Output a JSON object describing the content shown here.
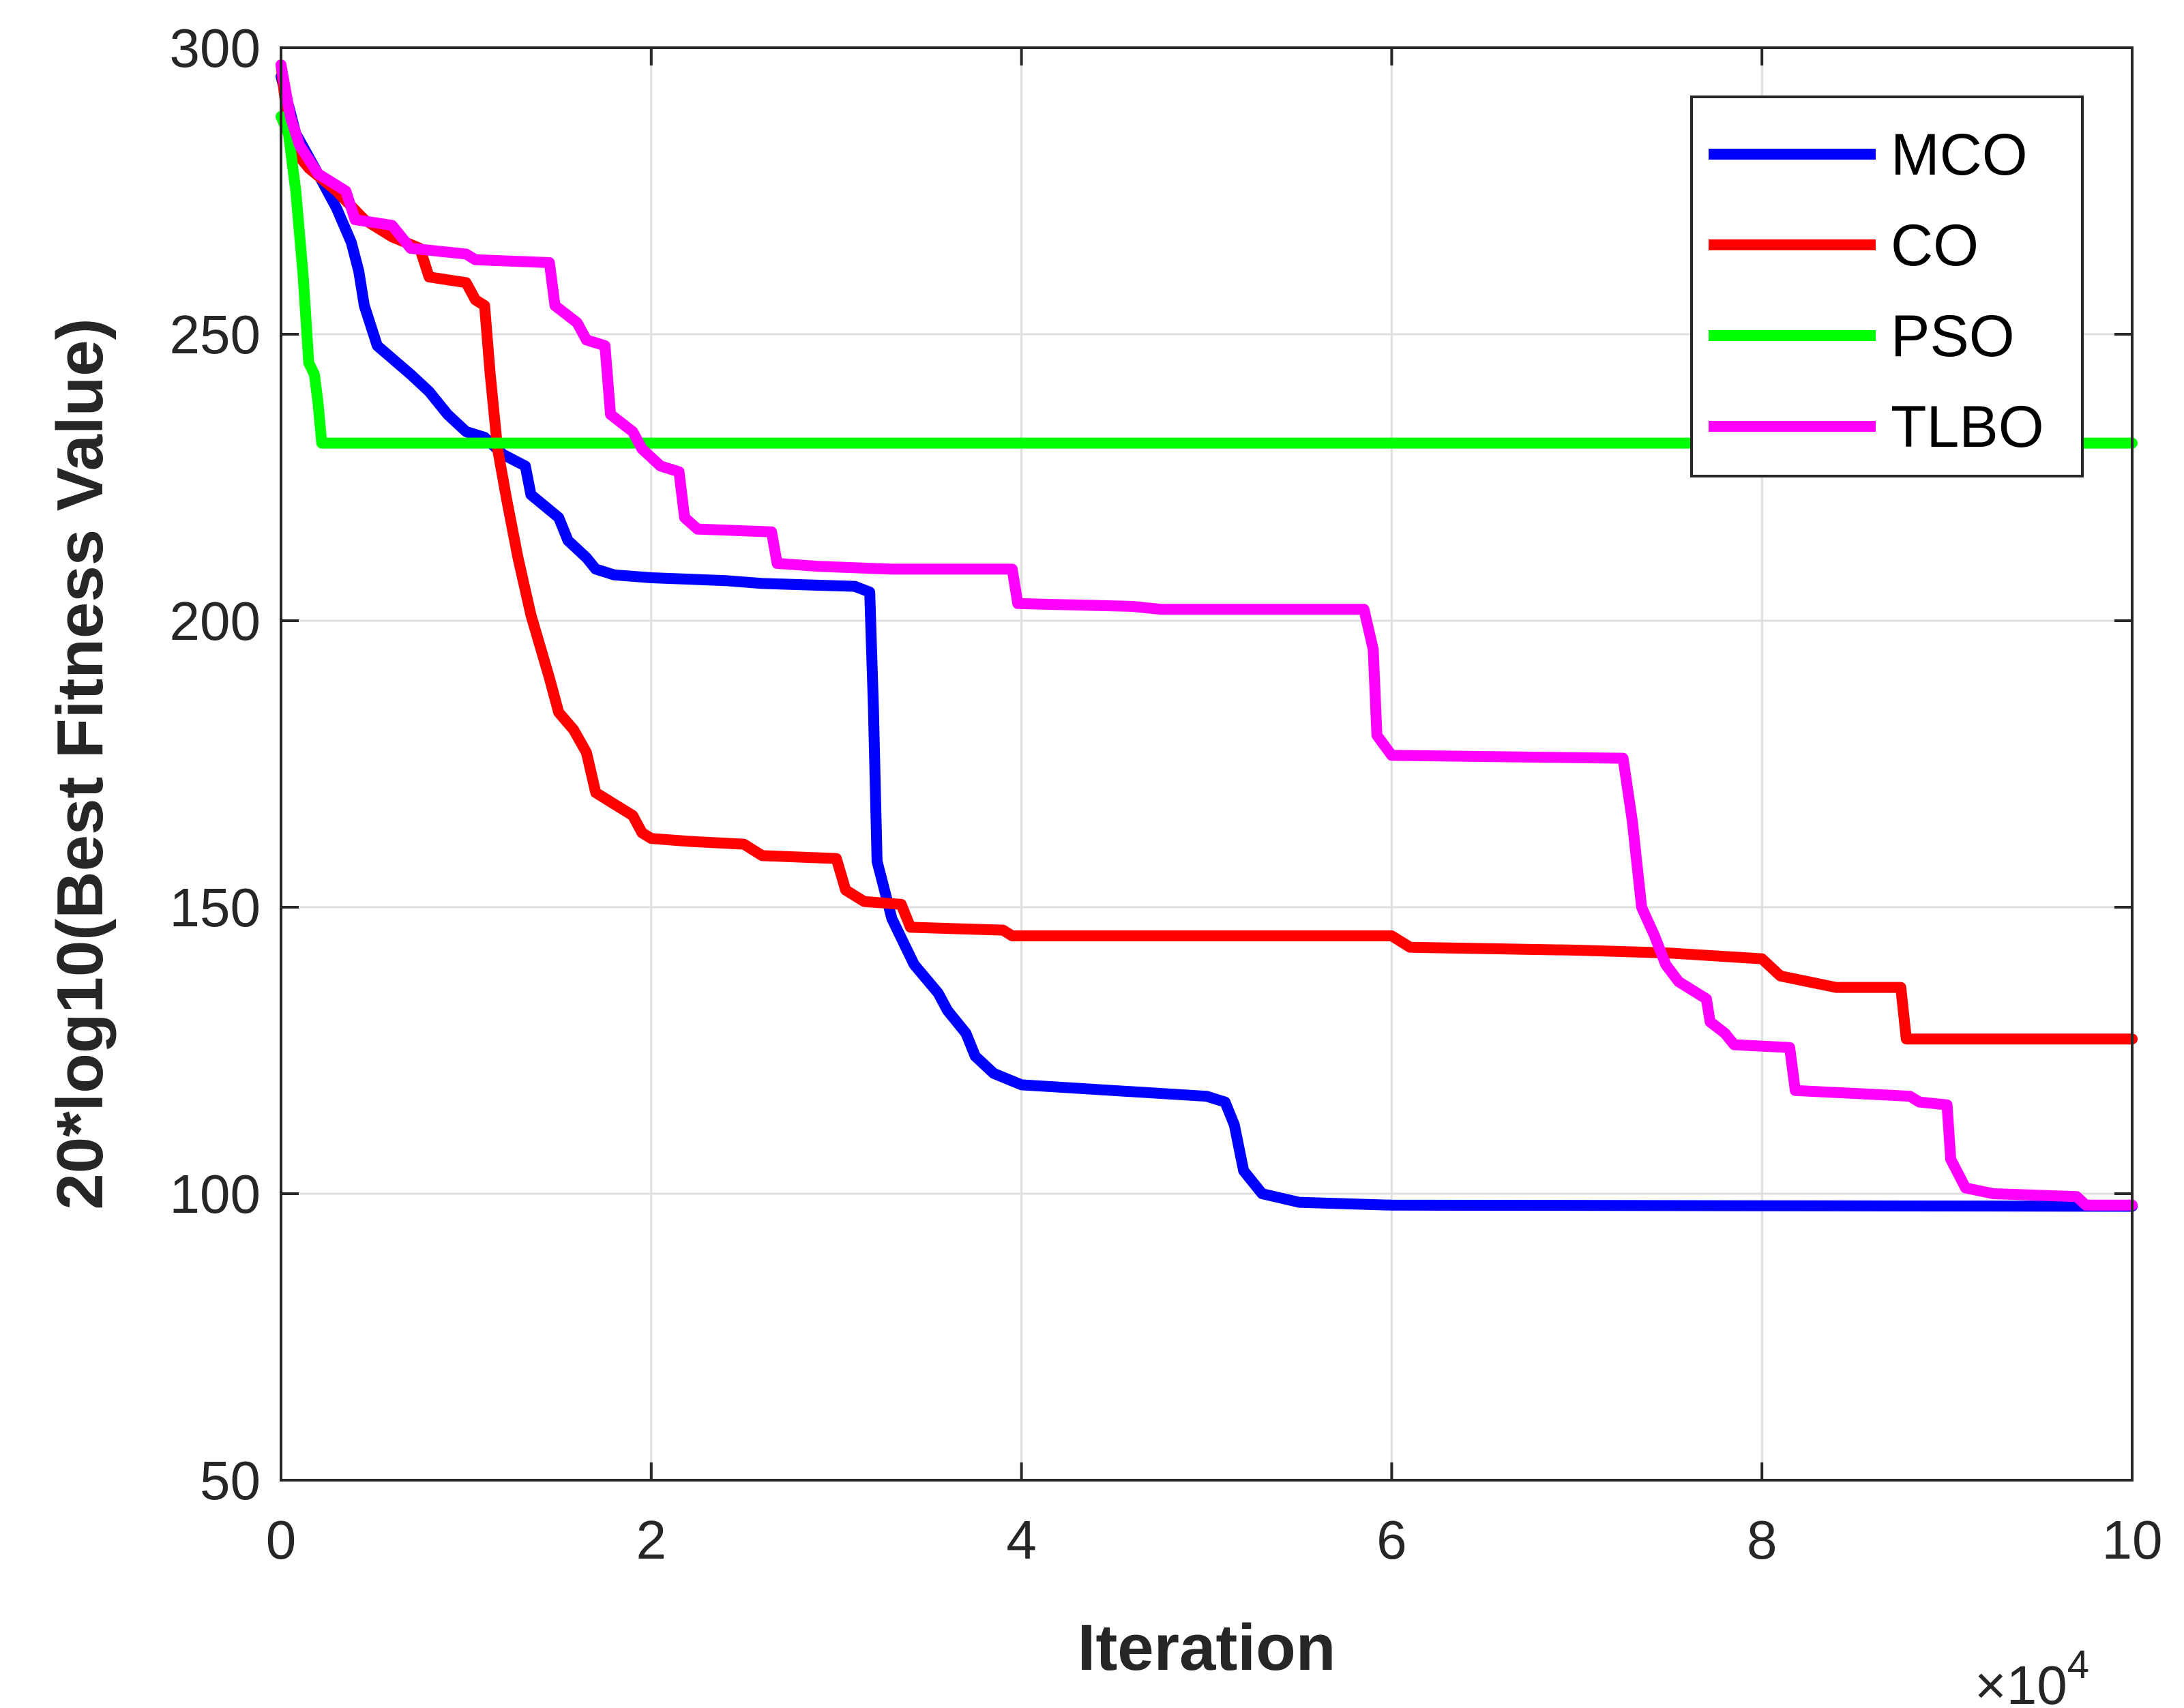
{
  "chart_data": {
    "type": "line",
    "xlabel": "Iteration",
    "ylabel": "20*log10(Best Fitness Value)",
    "x_multiplier_label": "×10",
    "x_multiplier_exponent": "4",
    "xlim": [
      0,
      10
    ],
    "ylim": [
      50,
      300
    ],
    "x_ticks": [
      0,
      2,
      4,
      6,
      8,
      10
    ],
    "y_ticks": [
      50,
      100,
      150,
      200,
      250,
      300
    ],
    "grid": true,
    "legend_position": "top-right",
    "series": [
      {
        "name": "MCO",
        "color": "#0000ff",
        "points": [
          [
            0,
            295
          ],
          [
            0.08,
            285
          ],
          [
            0.2,
            278
          ],
          [
            0.3,
            272
          ],
          [
            0.38,
            266
          ],
          [
            0.42,
            261
          ],
          [
            0.45,
            255
          ],
          [
            0.52,
            248
          ],
          [
            0.7,
            243
          ],
          [
            0.8,
            240
          ],
          [
            0.9,
            236
          ],
          [
            1.0,
            233
          ],
          [
            1.1,
            232
          ],
          [
            1.2,
            229
          ],
          [
            1.32,
            227
          ],
          [
            1.35,
            222
          ],
          [
            1.5,
            218
          ],
          [
            1.55,
            214
          ],
          [
            1.65,
            211
          ],
          [
            1.7,
            209
          ],
          [
            1.8,
            208
          ],
          [
            2.0,
            207.5
          ],
          [
            2.4,
            207
          ],
          [
            2.6,
            206.5
          ],
          [
            3.1,
            206
          ],
          [
            3.18,
            205
          ],
          [
            3.2,
            185
          ],
          [
            3.22,
            158
          ],
          [
            3.3,
            148
          ],
          [
            3.42,
            140
          ],
          [
            3.55,
            135
          ],
          [
            3.6,
            132
          ],
          [
            3.7,
            128
          ],
          [
            3.75,
            124
          ],
          [
            3.85,
            121
          ],
          [
            4.0,
            119
          ],
          [
            4.5,
            118
          ],
          [
            5.0,
            117
          ],
          [
            5.1,
            116
          ],
          [
            5.15,
            112
          ],
          [
            5.2,
            104
          ],
          [
            5.3,
            100
          ],
          [
            5.5,
            98.5
          ],
          [
            6.0,
            98
          ],
          [
            10,
            97.8
          ]
        ]
      },
      {
        "name": "CO",
        "color": "#ff0000",
        "points": [
          [
            0,
            297
          ],
          [
            0.05,
            283
          ],
          [
            0.15,
            279
          ],
          [
            0.3,
            275
          ],
          [
            0.45,
            270
          ],
          [
            0.6,
            267
          ],
          [
            0.75,
            265
          ],
          [
            0.8,
            260
          ],
          [
            1.0,
            259
          ],
          [
            1.05,
            256
          ],
          [
            1.1,
            255
          ],
          [
            1.13,
            243
          ],
          [
            1.17,
            230
          ],
          [
            1.22,
            221
          ],
          [
            1.28,
            211
          ],
          [
            1.35,
            201
          ],
          [
            1.45,
            190
          ],
          [
            1.5,
            184
          ],
          [
            1.58,
            181
          ],
          [
            1.65,
            177
          ],
          [
            1.7,
            170
          ],
          [
            1.8,
            168
          ],
          [
            1.9,
            166
          ],
          [
            1.95,
            163
          ],
          [
            2.0,
            162
          ],
          [
            2.2,
            161.5
          ],
          [
            2.5,
            161
          ],
          [
            2.6,
            159
          ],
          [
            3.0,
            158.5
          ],
          [
            3.05,
            153
          ],
          [
            3.15,
            151
          ],
          [
            3.35,
            150.5
          ],
          [
            3.4,
            146.5
          ],
          [
            3.9,
            146
          ],
          [
            3.95,
            145
          ],
          [
            6.0,
            145
          ],
          [
            6.1,
            143
          ],
          [
            7.0,
            142.5
          ],
          [
            7.5,
            142
          ],
          [
            8.0,
            141
          ],
          [
            8.1,
            138
          ],
          [
            8.4,
            136
          ],
          [
            8.75,
            136
          ],
          [
            8.78,
            127
          ],
          [
            10,
            127
          ]
        ]
      },
      {
        "name": "PSO",
        "color": "#00ff00",
        "points": [
          [
            0,
            288
          ],
          [
            0.04,
            285
          ],
          [
            0.08,
            275
          ],
          [
            0.12,
            260
          ],
          [
            0.15,
            245
          ],
          [
            0.18,
            243
          ],
          [
            0.2,
            238
          ],
          [
            0.22,
            231
          ],
          [
            0.3,
            231
          ],
          [
            10,
            231
          ]
        ]
      },
      {
        "name": "TLBO",
        "color": "#ff00ff",
        "points": [
          [
            0,
            297
          ],
          [
            0.05,
            288
          ],
          [
            0.1,
            283
          ],
          [
            0.2,
            278
          ],
          [
            0.35,
            275
          ],
          [
            0.4,
            270
          ],
          [
            0.6,
            269
          ],
          [
            0.7,
            265
          ],
          [
            1.0,
            264
          ],
          [
            1.05,
            263
          ],
          [
            1.45,
            262.5
          ],
          [
            1.48,
            255
          ],
          [
            1.6,
            252
          ],
          [
            1.65,
            249
          ],
          [
            1.75,
            248
          ],
          [
            1.78,
            236
          ],
          [
            1.9,
            233
          ],
          [
            1.95,
            230
          ],
          [
            2.05,
            227
          ],
          [
            2.15,
            226
          ],
          [
            2.18,
            218
          ],
          [
            2.25,
            216
          ],
          [
            2.65,
            215.5
          ],
          [
            2.68,
            210
          ],
          [
            2.9,
            209.5
          ],
          [
            3.3,
            209
          ],
          [
            3.95,
            209
          ],
          [
            3.98,
            203
          ],
          [
            4.6,
            202.5
          ],
          [
            4.75,
            202
          ],
          [
            5.85,
            202
          ],
          [
            5.9,
            195
          ],
          [
            5.92,
            180
          ],
          [
            6.0,
            176.5
          ],
          [
            7.25,
            176
          ],
          [
            7.3,
            165
          ],
          [
            7.35,
            150
          ],
          [
            7.42,
            145
          ],
          [
            7.48,
            140
          ],
          [
            7.55,
            137
          ],
          [
            7.7,
            134
          ],
          [
            7.72,
            130
          ],
          [
            7.8,
            128
          ],
          [
            7.85,
            126
          ],
          [
            8.15,
            125.5
          ],
          [
            8.18,
            118
          ],
          [
            8.5,
            117.5
          ],
          [
            8.8,
            117
          ],
          [
            8.85,
            116
          ],
          [
            9.0,
            115.5
          ],
          [
            9.02,
            106
          ],
          [
            9.1,
            101
          ],
          [
            9.25,
            100
          ],
          [
            9.7,
            99.5
          ],
          [
            9.75,
            98
          ],
          [
            10,
            98
          ]
        ]
      }
    ]
  }
}
